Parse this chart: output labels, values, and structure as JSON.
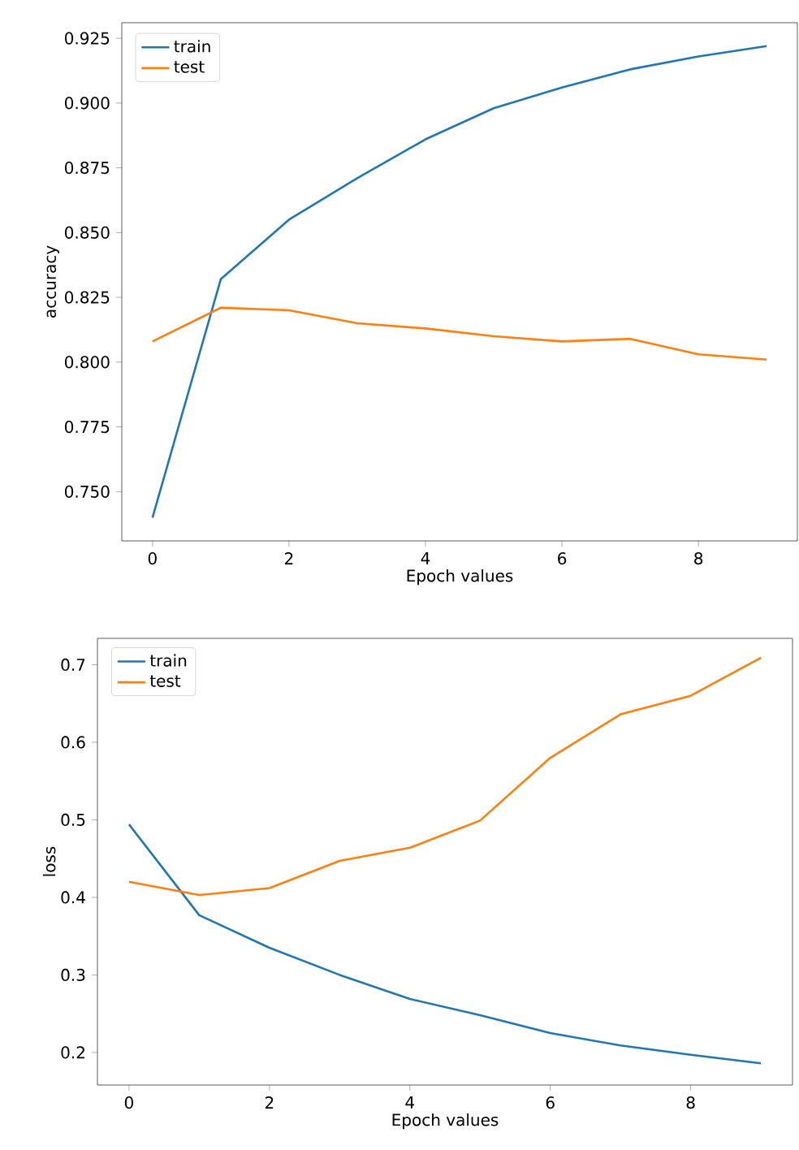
{
  "chart_data": [
    {
      "type": "line",
      "xlabel": "Epoch values",
      "ylabel": "accuracy",
      "x": [
        0,
        1,
        2,
        3,
        4,
        5,
        6,
        7,
        8,
        9
      ],
      "xlim": [
        -0.45,
        9.45
      ],
      "xticks": [
        0,
        2,
        4,
        6,
        8
      ],
      "ylim": [
        0.731,
        0.931
      ],
      "yticks": [
        {
          "value": 0.75,
          "label": "0.750"
        },
        0.775,
        {
          "value": 0.8,
          "label": "0.800"
        },
        0.825,
        {
          "value": 0.85,
          "label": "0.850"
        },
        0.875,
        {
          "value": 0.9,
          "label": "0.900"
        },
        0.925
      ],
      "legend": "top left",
      "grid": false,
      "series": [
        {
          "name": "train",
          "color": "#1f77b4",
          "values": [
            0.74,
            0.832,
            0.855,
            0.871,
            0.886,
            0.898,
            0.906,
            0.913,
            0.918,
            0.922
          ]
        },
        {
          "name": "test",
          "color": "#ff7f0e",
          "values": [
            0.808,
            0.821,
            0.82,
            0.815,
            0.813,
            0.81,
            0.808,
            0.809,
            0.803,
            0.801
          ]
        }
      ]
    },
    {
      "type": "line",
      "xlabel": "Epoch values",
      "ylabel": "loss",
      "x": [
        0,
        1,
        2,
        3,
        4,
        5,
        6,
        7,
        8,
        9
      ],
      "xlim": [
        -0.45,
        9.45
      ],
      "xticks": [
        0,
        2,
        4,
        6,
        8
      ],
      "ylim": [
        0.158,
        0.734
      ],
      "yticks": [
        0.2,
        0.3,
        0.4,
        0.5,
        0.6,
        0.7
      ],
      "legend": "top left",
      "grid": false,
      "series": [
        {
          "name": "train",
          "color": "#1f77b4",
          "values": [
            0.494,
            0.377,
            0.335,
            0.3,
            0.269,
            0.248,
            0.225,
            0.209,
            0.197,
            0.186
          ]
        },
        {
          "name": "test",
          "color": "#ff7f0e",
          "values": [
            0.42,
            0.403,
            0.412,
            0.447,
            0.464,
            0.499,
            0.58,
            0.636,
            0.66,
            0.709
          ]
        }
      ]
    }
  ]
}
